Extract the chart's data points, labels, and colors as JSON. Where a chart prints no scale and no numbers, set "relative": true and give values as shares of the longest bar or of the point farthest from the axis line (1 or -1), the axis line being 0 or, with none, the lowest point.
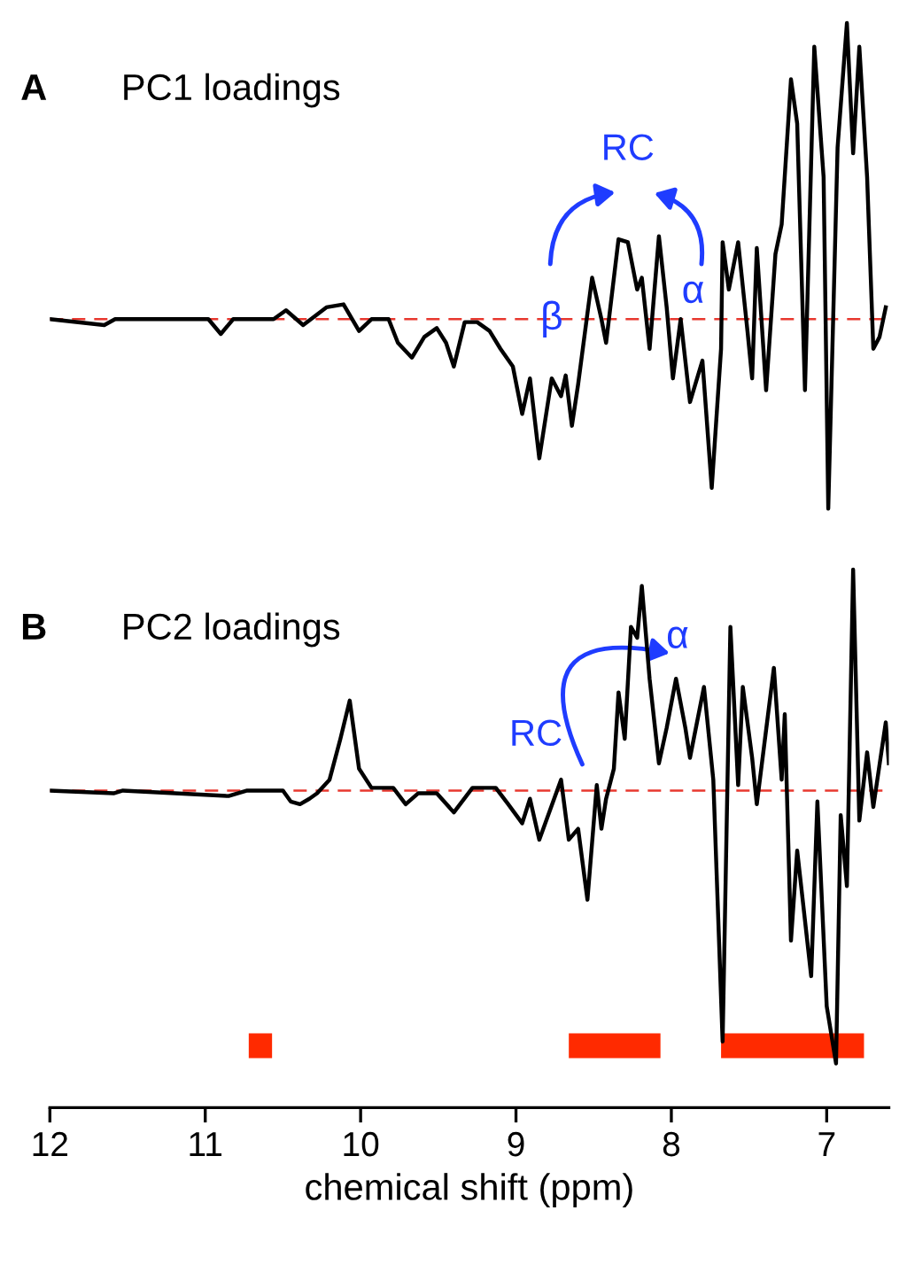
{
  "chart_data": [
    {
      "type": "line",
      "title": "PC1 loadings",
      "annotations": [
        "A",
        "RC",
        "β",
        "α"
      ],
      "relative": true,
      "xlim": [
        12,
        6.6
      ],
      "xticks": [
        12,
        11,
        10,
        9,
        8,
        7
      ],
      "tick_labels": false,
      "grid": false,
      "legend": false,
      "marker": "none",
      "line_style": "solid",
      "x": [
        12.0,
        11.65,
        11.58,
        10.98,
        10.9,
        10.82,
        10.56,
        10.48,
        10.37,
        10.22,
        10.11,
        10.01,
        9.93,
        9.82,
        9.76,
        9.67,
        9.59,
        9.51,
        9.45,
        9.4,
        9.33,
        9.25,
        9.17,
        9.1,
        9.02,
        8.96,
        8.91,
        8.85,
        8.77,
        8.71,
        8.68,
        8.64,
        8.6,
        8.51,
        8.45,
        8.42,
        8.34,
        8.28,
        8.22,
        8.19,
        8.14,
        8.08,
        8.03,
        7.99,
        7.94,
        7.88,
        7.8,
        7.74,
        7.68,
        7.67,
        7.63,
        7.57,
        7.51,
        7.48,
        7.45,
        7.39,
        7.33,
        7.29,
        7.23,
        7.19,
        7.14,
        7.08,
        7.02,
        6.99,
        6.93,
        6.87,
        6.83,
        6.79,
        6.74,
        6.7,
        6.66,
        6.62
      ],
      "series": [
        {
          "color": "#000000",
          "values": [
            0,
            -0.02,
            0,
            0,
            -0.05,
            0,
            0,
            0.03,
            -0.02,
            0.04,
            0.05,
            -0.04,
            0,
            0,
            -0.08,
            -0.13,
            -0.06,
            -0.03,
            -0.08,
            -0.16,
            -0.01,
            -0.01,
            -0.04,
            -0.1,
            -0.16,
            -0.32,
            -0.2,
            -0.47,
            -0.2,
            -0.26,
            -0.19,
            -0.36,
            -0.22,
            0.14,
            0,
            -0.08,
            0.27,
            0.26,
            0.1,
            0.14,
            -0.1,
            0.28,
            0.04,
            -0.2,
            0,
            -0.28,
            -0.14,
            -0.57,
            -0.1,
            0.26,
            0.1,
            0.26,
            -0.04,
            -0.2,
            0.24,
            -0.24,
            0.22,
            0.32,
            0.81,
            0.66,
            -0.24,
            0.92,
            0.48,
            -0.64,
            0.58,
            1,
            0.56,
            0.92,
            0.48,
            -0.1,
            -0.06,
            0.04
          ]
        }
      ],
      "ref_lines": [
        {
          "axis": "y",
          "value": 0,
          "color": "#e8382f",
          "line_style": "dashed"
        }
      ]
    },
    {
      "type": "line",
      "title": "PC2 loadings",
      "annotations": [
        "B",
        "RC",
        "α"
      ],
      "xlabel": "chemical shift (ppm)",
      "relative": true,
      "xlim": [
        12,
        6.6
      ],
      "xticks": [
        12,
        11,
        10,
        9,
        8,
        7
      ],
      "tick_labels": "x",
      "grid": false,
      "legend": false,
      "marker": "none",
      "line_style": "solid",
      "x": [
        12.0,
        11.59,
        11.53,
        10.85,
        10.73,
        10.5,
        10.45,
        10.39,
        10.33,
        10.28,
        10.2,
        10.13,
        10.07,
        10.01,
        9.93,
        9.79,
        9.71,
        9.63,
        9.51,
        9.4,
        9.28,
        9.13,
        9.05,
        8.96,
        8.91,
        8.85,
        8.71,
        8.66,
        8.6,
        8.54,
        8.48,
        8.45,
        8.42,
        8.37,
        8.34,
        8.3,
        8.26,
        8.22,
        8.19,
        8.14,
        8.08,
        8.03,
        7.97,
        7.91,
        7.88,
        7.79,
        7.73,
        7.67,
        7.62,
        7.57,
        7.54,
        7.48,
        7.45,
        7.34,
        7.29,
        7.27,
        7.23,
        7.19,
        7.1,
        7.06,
        7.0,
        6.94,
        6.91,
        6.87,
        6.83,
        6.79,
        6.74,
        6.7,
        6.62,
        6.6
      ],
      "series": [
        {
          "color": "#000000",
          "values": [
            0,
            -0.01,
            0,
            -0.02,
            0,
            0,
            -0.04,
            -0.05,
            -0.03,
            -0.01,
            0.04,
            0.19,
            0.33,
            0.08,
            0.01,
            0.01,
            -0.05,
            -0.01,
            -0.01,
            -0.08,
            0.01,
            0.01,
            -0.05,
            -0.12,
            -0.03,
            -0.18,
            0.04,
            -0.18,
            -0.14,
            -0.4,
            0.02,
            -0.14,
            -0.03,
            0.08,
            0.36,
            0.19,
            0.6,
            0.56,
            0.75,
            0.41,
            0.1,
            0.23,
            0.41,
            0.23,
            0.12,
            0.38,
            0.04,
            -0.92,
            0.6,
            0.02,
            0.38,
            0.12,
            -0.05,
            0.45,
            0.04,
            0.28,
            -0.55,
            -0.22,
            -0.68,
            -0.04,
            -0.79,
            -1,
            -0.09,
            -0.35,
            0.81,
            -0.11,
            0.14,
            -0.06,
            0.25,
            0.1
          ]
        }
      ],
      "ref_lines": [
        {
          "axis": "y",
          "value": 0,
          "color": "#e8382f",
          "line_style": "dashed"
        }
      ],
      "bands": [
        {
          "axis": "x",
          "from": 10.72,
          "to": 10.57,
          "color": "#ff2a00"
        },
        {
          "axis": "x",
          "from": 8.66,
          "to": 8.07,
          "color": "#ff2a00"
        },
        {
          "axis": "x",
          "from": 7.68,
          "to": 6.76,
          "color": "#ff2a00"
        }
      ]
    }
  ]
}
